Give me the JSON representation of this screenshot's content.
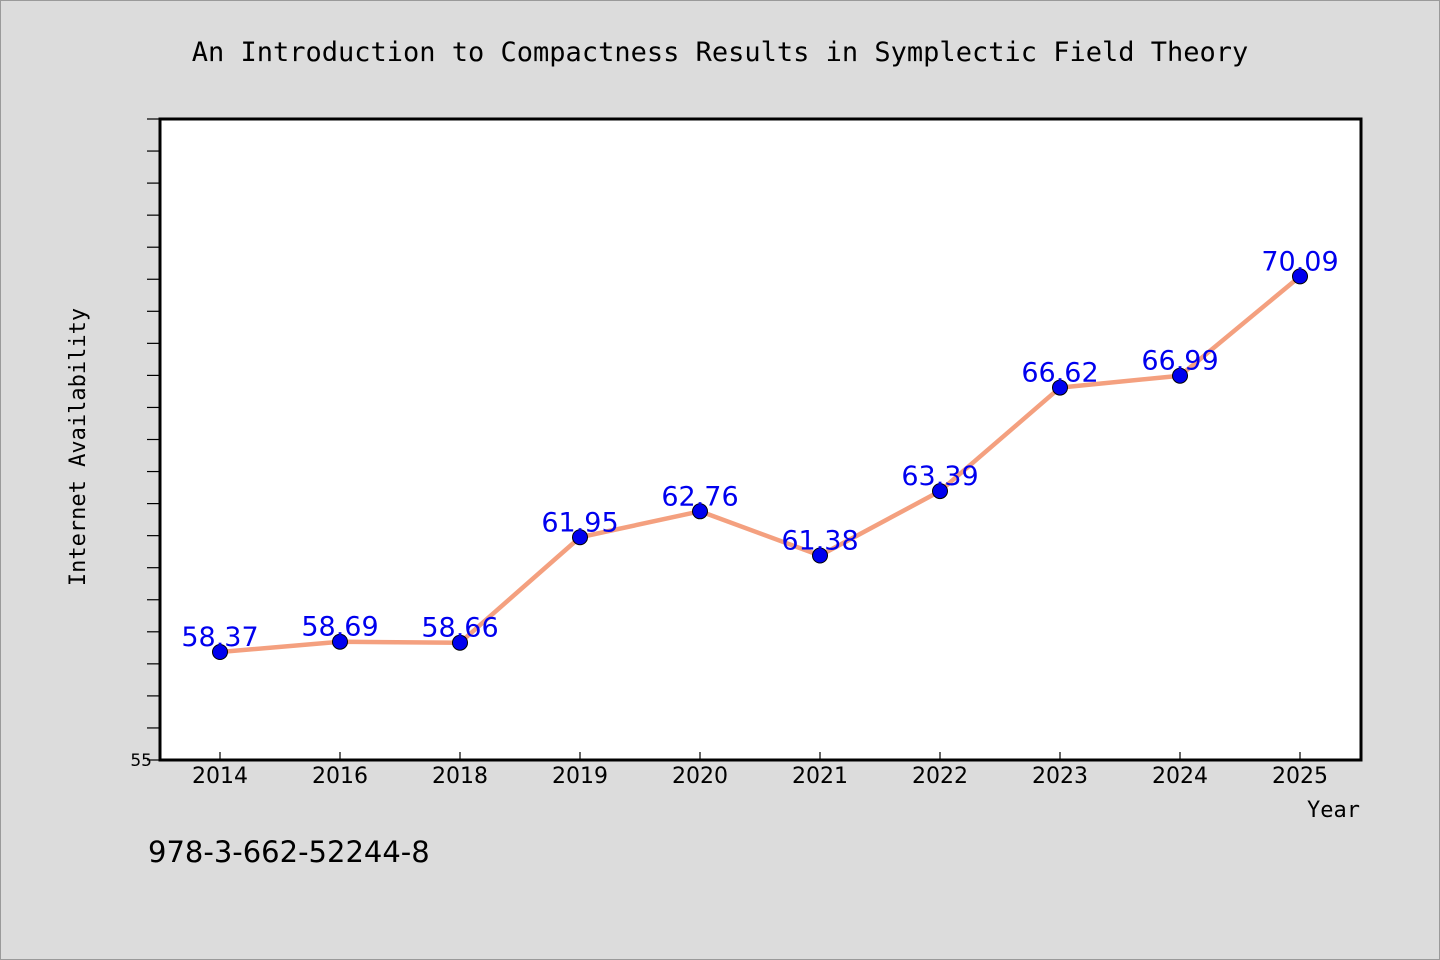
{
  "chart_data": {
    "type": "line",
    "title": "An Introduction to Compactness Results in Symplectic Field Theory",
    "xlabel": "Year",
    "ylabel": "Internet Availability",
    "categories": [
      "2014",
      "2016",
      "2018",
      "2019",
      "2020",
      "2021",
      "2022",
      "2023",
      "2024",
      "2025"
    ],
    "series": [
      {
        "values": [
          58.37,
          58.69,
          58.66,
          61.95,
          62.76,
          61.38,
          63.39,
          66.62,
          66.99,
          70.09
        ],
        "data_labels": [
          "58.37",
          "58.69",
          "58.66",
          "61.95",
          "62.76",
          "61.38",
          "63.39",
          "66.62",
          "66.99",
          "70.09"
        ]
      }
    ],
    "ylim": [
      55,
      75
    ],
    "y_tick_labels": [
      "55"
    ],
    "y_minor_step": 1,
    "grid": false,
    "legend": "none",
    "line_color": "#f4a07f",
    "marker_color": "#0000ee",
    "label_color": "#0000ee",
    "plot_background": "#ffffff",
    "figure_background": "#dcdcdc"
  },
  "footer": {
    "isbn": "978-3-662-52244-8"
  }
}
